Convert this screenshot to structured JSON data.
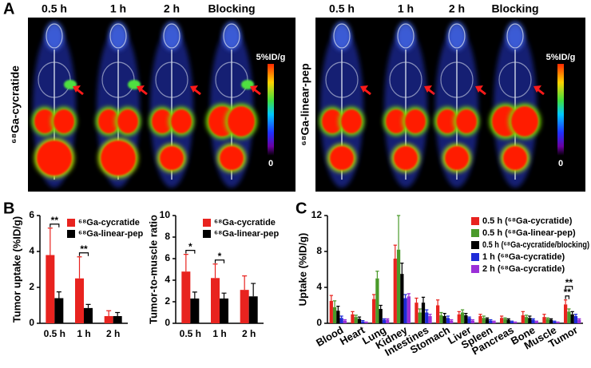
{
  "panel_labels": {
    "a": "A",
    "b": "B",
    "c": "C"
  },
  "imaging": [
    {
      "tracer": "⁶⁸Ga-cycratide",
      "timepoints": [
        "0.5 h",
        "1 h",
        "2 h",
        "Blocking"
      ],
      "scale_max": "5%ID/g",
      "scale_min": "0"
    },
    {
      "tracer": "⁶⁸Ga-linear-pep",
      "timepoints": [
        "0.5 h",
        "1 h",
        "2 h",
        "Blocking"
      ],
      "scale_max": "5%ID/g",
      "scale_min": "0"
    }
  ],
  "chart_data": [
    {
      "type": "bar",
      "ylabel": "Tumor uptake (%ID/g)",
      "categories": [
        "0.5 h",
        "1 h",
        "2 h"
      ],
      "series": [
        {
          "name": "⁶⁸Ga-cycratide",
          "color": "#e8231f",
          "values": [
            3.8,
            2.5,
            0.4
          ],
          "errors": [
            1.5,
            1.2,
            0.3
          ]
        },
        {
          "name": "⁶⁸Ga-linear-pep",
          "color": "#000000",
          "values": [
            1.4,
            0.85,
            0.4
          ],
          "errors": [
            0.35,
            0.2,
            0.2
          ]
        }
      ],
      "ylim": [
        0,
        6
      ],
      "yticks": [
        0,
        2,
        4,
        6
      ],
      "annotations": [
        {
          "label": "**",
          "category": "0.5 h"
        },
        {
          "label": "**",
          "category": "1 h"
        }
      ]
    },
    {
      "type": "bar",
      "ylabel": "Tumor-to-muscle ratio",
      "categories": [
        "0.5 h",
        "1 h",
        "2 h"
      ],
      "series": [
        {
          "name": "⁶⁸Ga-cycratide",
          "color": "#e8231f",
          "values": [
            4.8,
            4.2,
            3.1
          ],
          "errors": [
            1.6,
            1.3,
            1.3
          ]
        },
        {
          "name": "⁶⁸Ga-linear-pep",
          "color": "#000000",
          "values": [
            2.3,
            2.3,
            2.5
          ],
          "errors": [
            0.6,
            0.5,
            1.2
          ]
        }
      ],
      "ylim": [
        0,
        10
      ],
      "yticks": [
        0,
        2,
        4,
        6,
        8,
        10
      ],
      "annotations": [
        {
          "label": "*",
          "category": "0.5 h"
        },
        {
          "label": "*",
          "category": "1 h"
        }
      ]
    },
    {
      "type": "bar",
      "ylabel": "Uptake (%ID/g)",
      "categories": [
        "Blood",
        "Heart",
        "Lung",
        "Kidney",
        "Intestines",
        "Stomach",
        "Liver",
        "Spleen",
        "Pancreas",
        "Bone",
        "Muscle",
        "Tumor"
      ],
      "series": [
        {
          "name": "0.5 h (⁶⁸Ga-cycratide)",
          "color": "#e8231f",
          "values": [
            2.5,
            1.0,
            2.7,
            7.2,
            2.3,
            2.0,
            1.0,
            0.8,
            0.6,
            0.9,
            0.7,
            2.1
          ],
          "errors": [
            0.6,
            0.3,
            0.5,
            1.5,
            0.5,
            0.6,
            0.3,
            0.2,
            0.2,
            0.4,
            0.3,
            0.5
          ]
        },
        {
          "name": "0.5 h (⁶⁸Ga-linear-pep)",
          "color": "#4a9a2a",
          "values": [
            1.8,
            0.7,
            5.0,
            8.2,
            1.2,
            0.9,
            1.2,
            0.6,
            0.5,
            0.7,
            0.5,
            1.3
          ],
          "errors": [
            0.7,
            0.2,
            0.8,
            3.8,
            0.4,
            0.3,
            0.3,
            0.2,
            0.1,
            0.2,
            0.1,
            0.3
          ]
        },
        {
          "name": "0.5 h (⁶⁸Ga-cycratide/blocking)",
          "color": "#000000",
          "values": [
            1.4,
            0.5,
            1.6,
            5.5,
            2.3,
            0.8,
            0.9,
            0.5,
            0.4,
            0.6,
            0.4,
            1.0
          ],
          "errors": [
            0.5,
            0.2,
            0.4,
            1.2,
            0.6,
            0.3,
            0.2,
            0.1,
            0.1,
            0.2,
            0.1,
            0.3
          ]
        },
        {
          "name": "1 h (⁶⁸Ga-cycratide)",
          "color": "#1f2bd8",
          "values": [
            0.6,
            0.2,
            0.4,
            2.8,
            1.2,
            0.6,
            0.6,
            0.3,
            0.2,
            0.4,
            0.2,
            0.8
          ],
          "errors": [
            0.2,
            0.1,
            0.1,
            0.4,
            0.3,
            0.2,
            0.1,
            0.1,
            0.05,
            0.1,
            0.05,
            0.2
          ]
        },
        {
          "name": "2 h (⁶⁸Ga-cycratide)",
          "color": "#9b30d8",
          "values": [
            0.3,
            0.1,
            0.4,
            3.0,
            0.8,
            0.3,
            0.3,
            0.2,
            0.1,
            0.2,
            0.1,
            0.4
          ],
          "errors": [
            0.1,
            0.05,
            0.1,
            0.3,
            0.2,
            0.1,
            0.1,
            0.05,
            0.05,
            0.05,
            0.05,
            0.1
          ]
        }
      ],
      "ylim": [
        0,
        12
      ],
      "yticks": [
        0,
        4,
        8,
        12
      ],
      "annotations": [
        {
          "label": "**",
          "category": "Tumor"
        },
        {
          "label": "**",
          "category": "Tumor"
        }
      ]
    }
  ]
}
